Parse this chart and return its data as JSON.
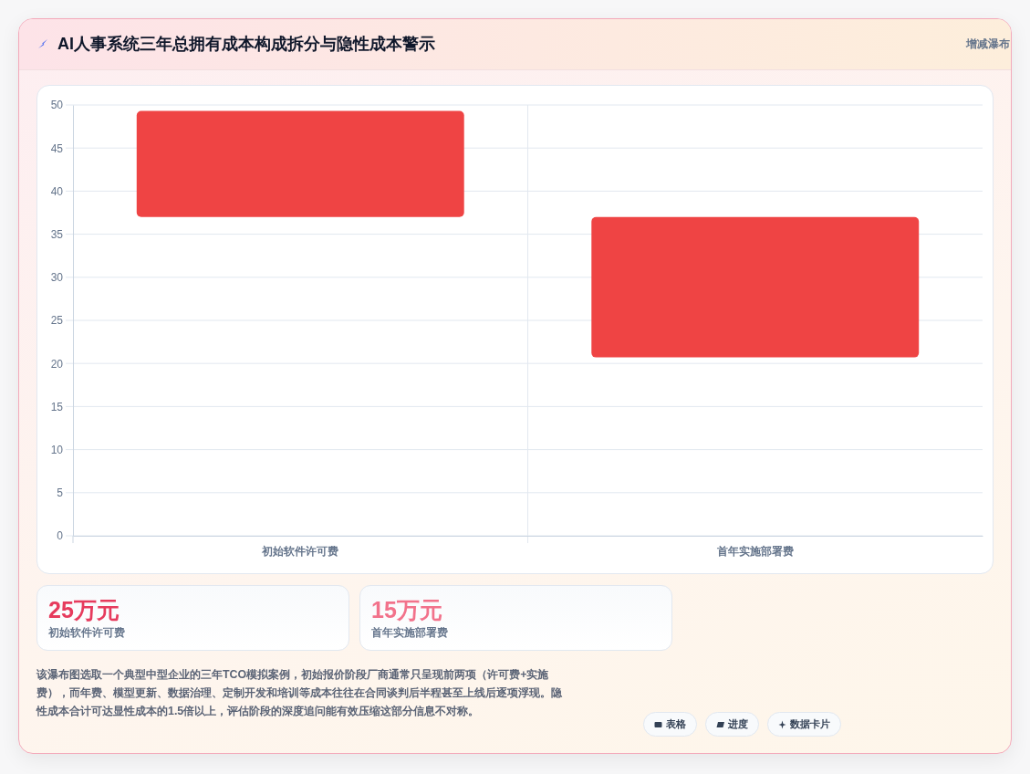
{
  "chart_data": {
    "type": "bar",
    "title": "AI人事系统三年总拥有成本构成拆分与隐性成本警示",
    "categories": [
      "初始软件许可费",
      "首年实施部署费"
    ],
    "values": [
      12.3,
      16.3
    ],
    "base": [
      37,
      20.7
    ],
    "color": "#ef4444",
    "ylim": [
      0,
      50
    ],
    "yticks": [
      0,
      5,
      10,
      15,
      20,
      25,
      30,
      35,
      40,
      45,
      50
    ],
    "grid": true,
    "annotations": [
      "增减瀑布",
      "25万元",
      "初始软件许可费",
      "15万元",
      "首年实施部署费",
      "该瀑布图选取一个典型中型企业的三年TCO模拟案例，初始报价阶段厂商通常只呈现前两项（许可费+实施费），而年费、模型更新、数据治理、定制开发和培训等成本往往在合同谈判后半程甚至上线后逐项浮现。隐性成本合计可达显性成本的1.5倍以上，评估阶段的深度追问能有效压缩这部分信息不对称。",
      "表格",
      "进度",
      "数据卡片"
    ]
  }
}
